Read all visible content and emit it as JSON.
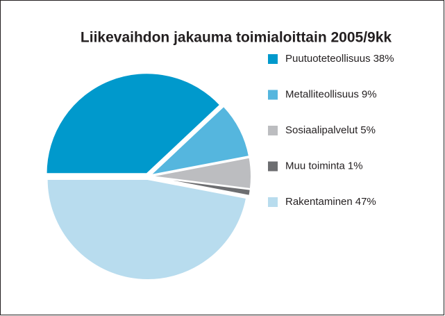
{
  "chart_data": {
    "type": "pie",
    "title": "Liikevaihdon jakauma toimialoittain 2005/9kk",
    "categories": [
      "Puutuoteteollisuus",
      "Metalliteollisuus",
      "Sosiaalipalvelut",
      "Muu toiminta",
      "Rakentaminen"
    ],
    "values": [
      38,
      9,
      5,
      1,
      47
    ],
    "value_labels": [
      "38%",
      "9%",
      "5%",
      "1%",
      "47%"
    ],
    "colors": [
      "#0099cc",
      "#55b6de",
      "#bcbdc0",
      "#6d6e71",
      "#b8dcee"
    ],
    "legend": "right"
  }
}
